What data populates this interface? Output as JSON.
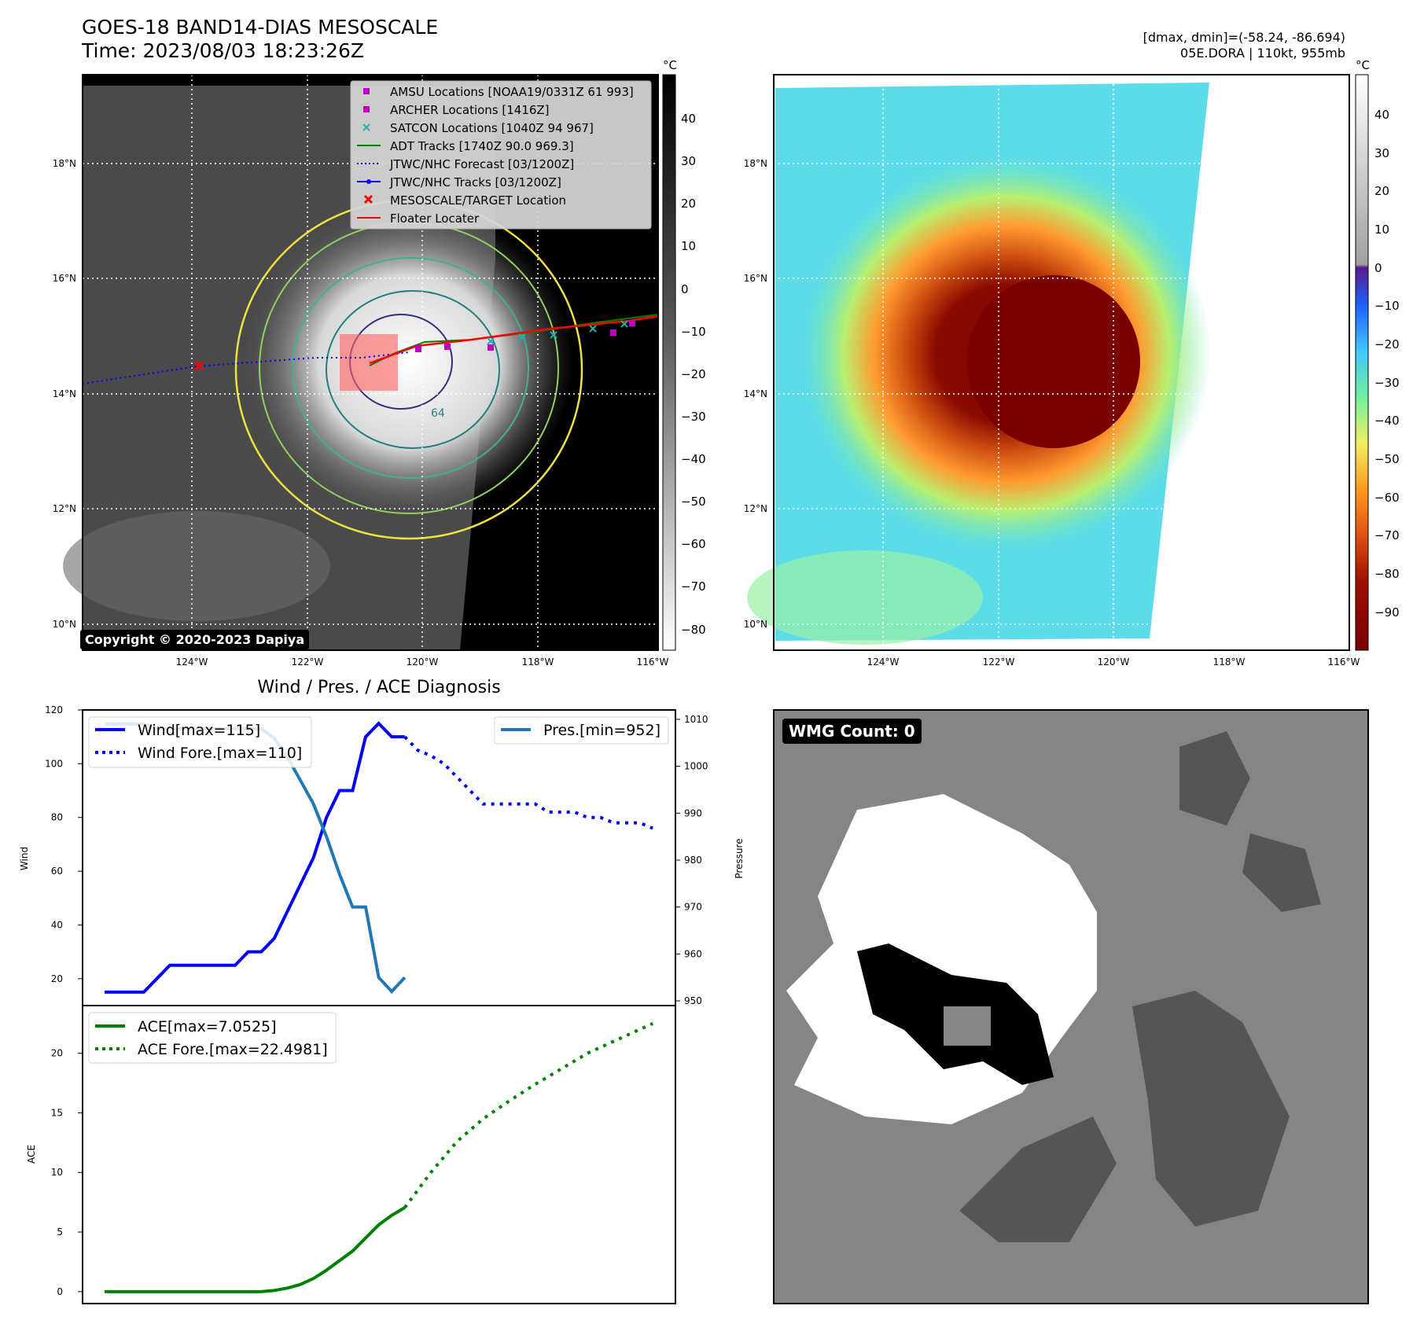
{
  "header": {
    "title_line1": "GOES-18 BAND14-DIAS MESOSCALE",
    "title_line2": "Time: 2023/08/03 18:23:26Z",
    "info_line1": "[dmax, dmin]=(-58.24, -86.694)",
    "info_line2": "05E.DORA | 110kt, 955mb"
  },
  "map": {
    "lat_labels": [
      "18°N",
      "16°N",
      "14°N",
      "12°N",
      "10°N"
    ],
    "lon_labels": [
      "124°W",
      "122°W",
      "120°W",
      "118°W",
      "116°W"
    ],
    "copyright": "Copyright © 2020-2023 Dapiya",
    "colorbar_unit": "°C",
    "colorbar_ticks": [
      "40",
      "30",
      "20",
      "10",
      "0",
      "−10",
      "−20",
      "−30",
      "−40",
      "−50",
      "−60",
      "−70",
      "−80"
    ],
    "contour_label": "64",
    "legend": [
      {
        "label": "AMSU Locations [NOAA19/0331Z 61 993]",
        "marker": "square",
        "color": "#c000c0"
      },
      {
        "label": "ARCHER Locations [1416Z]",
        "marker": "square",
        "color": "#c000c0"
      },
      {
        "label": "SATCON Locations [1040Z 94 967]",
        "marker": "x",
        "color": "#20b0b0"
      },
      {
        "label": "ADT Tracks [1740Z 90.0 969.3]",
        "marker": "line",
        "color": "#008000"
      },
      {
        "label": "JTWC/NHC Forecast [03/1200Z]",
        "marker": "dotted",
        "color": "#0000ff"
      },
      {
        "label": "JTWC/NHC Tracks [03/1200Z]",
        "marker": "line-dot",
        "color": "#0000ff"
      },
      {
        "label": "MESOSCALE/TARGET Location",
        "marker": "x",
        "color": "#ff0000"
      },
      {
        "label": "Floater Locater",
        "marker": "line",
        "color": "#ff0000"
      }
    ]
  },
  "enhanced_map": {
    "colorbar_unit": "°C",
    "colorbar_ticks": [
      "40",
      "30",
      "20",
      "10",
      "0",
      "−10",
      "−20",
      "−30",
      "−40",
      "−50",
      "−60",
      "−70",
      "−80",
      "−90"
    ]
  },
  "wmg_panel": {
    "badge": "WMG Count: 0"
  },
  "chart_data": [
    {
      "type": "line",
      "title": "Wind / Pres. / ACE Diagnosis",
      "ylabel": "Wind",
      "ylabel_right": "Pressure",
      "ylim": [
        10,
        120
      ],
      "ylim_right": [
        949,
        1012
      ],
      "yticks": [
        20,
        40,
        60,
        80,
        100,
        120
      ],
      "yticks_right": [
        950,
        960,
        970,
        980,
        990,
        1000,
        1010
      ],
      "series": [
        {
          "name": "Wind[max=115]",
          "style": "solid",
          "color": "#0000ff",
          "axis": "left",
          "x": [
            0,
            1,
            2,
            3,
            4,
            5,
            6,
            7,
            8,
            9,
            10,
            11,
            12,
            13,
            14,
            15,
            16,
            17,
            18,
            19,
            20,
            21,
            22,
            23
          ],
          "values": [
            15,
            15,
            15,
            15,
            20,
            25,
            25,
            25,
            25,
            25,
            25,
            30,
            30,
            35,
            45,
            55,
            65,
            80,
            90,
            90,
            110,
            115,
            110,
            110
          ]
        },
        {
          "name": "Wind Fore.[max=110]",
          "style": "dotted",
          "color": "#0000ff",
          "axis": "left",
          "x": [
            23,
            24,
            25,
            26,
            27,
            28,
            29,
            30,
            31,
            32,
            33,
            34,
            35,
            36,
            37,
            38,
            39,
            40,
            41,
            42
          ],
          "values": [
            110,
            105,
            103,
            100,
            95,
            90,
            85,
            85,
            85,
            85,
            85,
            82,
            82,
            82,
            80,
            80,
            78,
            78,
            78,
            76
          ]
        },
        {
          "name": "Pres.[min=952]",
          "style": "solid",
          "color": "#1f77b4",
          "axis": "right",
          "x": [
            0,
            1,
            2,
            3,
            4,
            5,
            6,
            7,
            8,
            9,
            10,
            11,
            12,
            13,
            14,
            15,
            16,
            17,
            18,
            19,
            20,
            21,
            22,
            23
          ],
          "values": [
            1009,
            1009,
            1009,
            1009,
            1008,
            1008,
            1008,
            1008,
            1008,
            1008,
            1008,
            1008,
            1008,
            1006,
            1002,
            997,
            992,
            985,
            977,
            970,
            970,
            955,
            952,
            955
          ]
        }
      ]
    },
    {
      "type": "line",
      "ylabel": "ACE",
      "ylim": [
        -1,
        24
      ],
      "yticks": [
        0,
        5,
        10,
        15,
        20
      ],
      "series": [
        {
          "name": "ACE[max=7.0525]",
          "style": "solid",
          "color": "#008000",
          "x": [
            0,
            2,
            4,
            6,
            8,
            10,
            11,
            12,
            13,
            14,
            15,
            16,
            17,
            18,
            19,
            20,
            21,
            22,
            23
          ],
          "values": [
            0,
            0,
            0,
            0,
            0,
            0,
            0,
            0,
            0.1,
            0.3,
            0.6,
            1.1,
            1.8,
            2.6,
            3.4,
            4.5,
            5.6,
            6.4,
            7.0525
          ]
        },
        {
          "name": "ACE Fore.[max=22.4981]",
          "style": "dotted",
          "color": "#008000",
          "x": [
            23,
            25,
            27,
            29,
            31,
            33,
            35,
            37,
            39,
            42
          ],
          "values": [
            7.0525,
            10.0,
            12.6,
            14.5,
            16.0,
            17.4,
            18.7,
            20.0,
            21.0,
            22.4981
          ]
        }
      ]
    }
  ]
}
